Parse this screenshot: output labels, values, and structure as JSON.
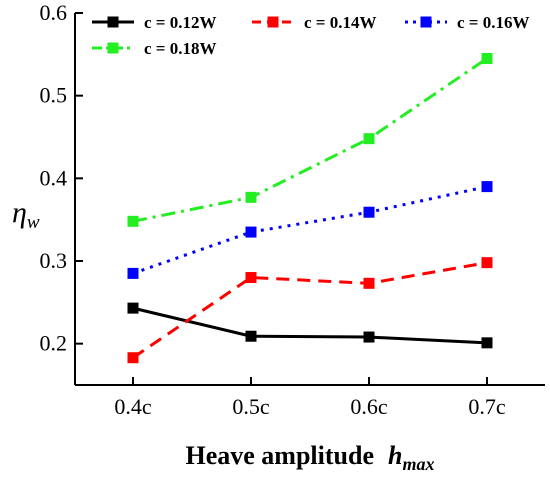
{
  "chart_data": {
    "type": "line",
    "categories": [
      "0.4c",
      "0.5c",
      "0.6c",
      "0.7c"
    ],
    "ylabel": "η",
    "ylabel_sub": "w",
    "xlabel": "Heave amplitude",
    "xlabel_var": "h",
    "xlabel_sub": "max",
    "ylim": [
      0.15,
      0.6
    ],
    "yticks": [
      0.2,
      0.3,
      0.4,
      0.5,
      0.6
    ],
    "grid": false,
    "legend_position": "top",
    "series": [
      {
        "name": "c = 0.12W",
        "color": "#000000",
        "dash": "solid",
        "values": [
          0.243,
          0.209,
          0.208,
          0.201
        ]
      },
      {
        "name": "c = 0.14W",
        "color": "#ff0000",
        "dash": "dashed",
        "values": [
          0.183,
          0.28,
          0.273,
          0.298
        ]
      },
      {
        "name": "c = 0.16W",
        "color": "#0000ff",
        "dash": "dotted",
        "values": [
          0.285,
          0.335,
          0.359,
          0.39
        ]
      },
      {
        "name": "c = 0.18W",
        "color": "#22ee22",
        "dash": "dash-dot",
        "values": [
          0.348,
          0.377,
          0.448,
          0.545
        ]
      }
    ]
  }
}
